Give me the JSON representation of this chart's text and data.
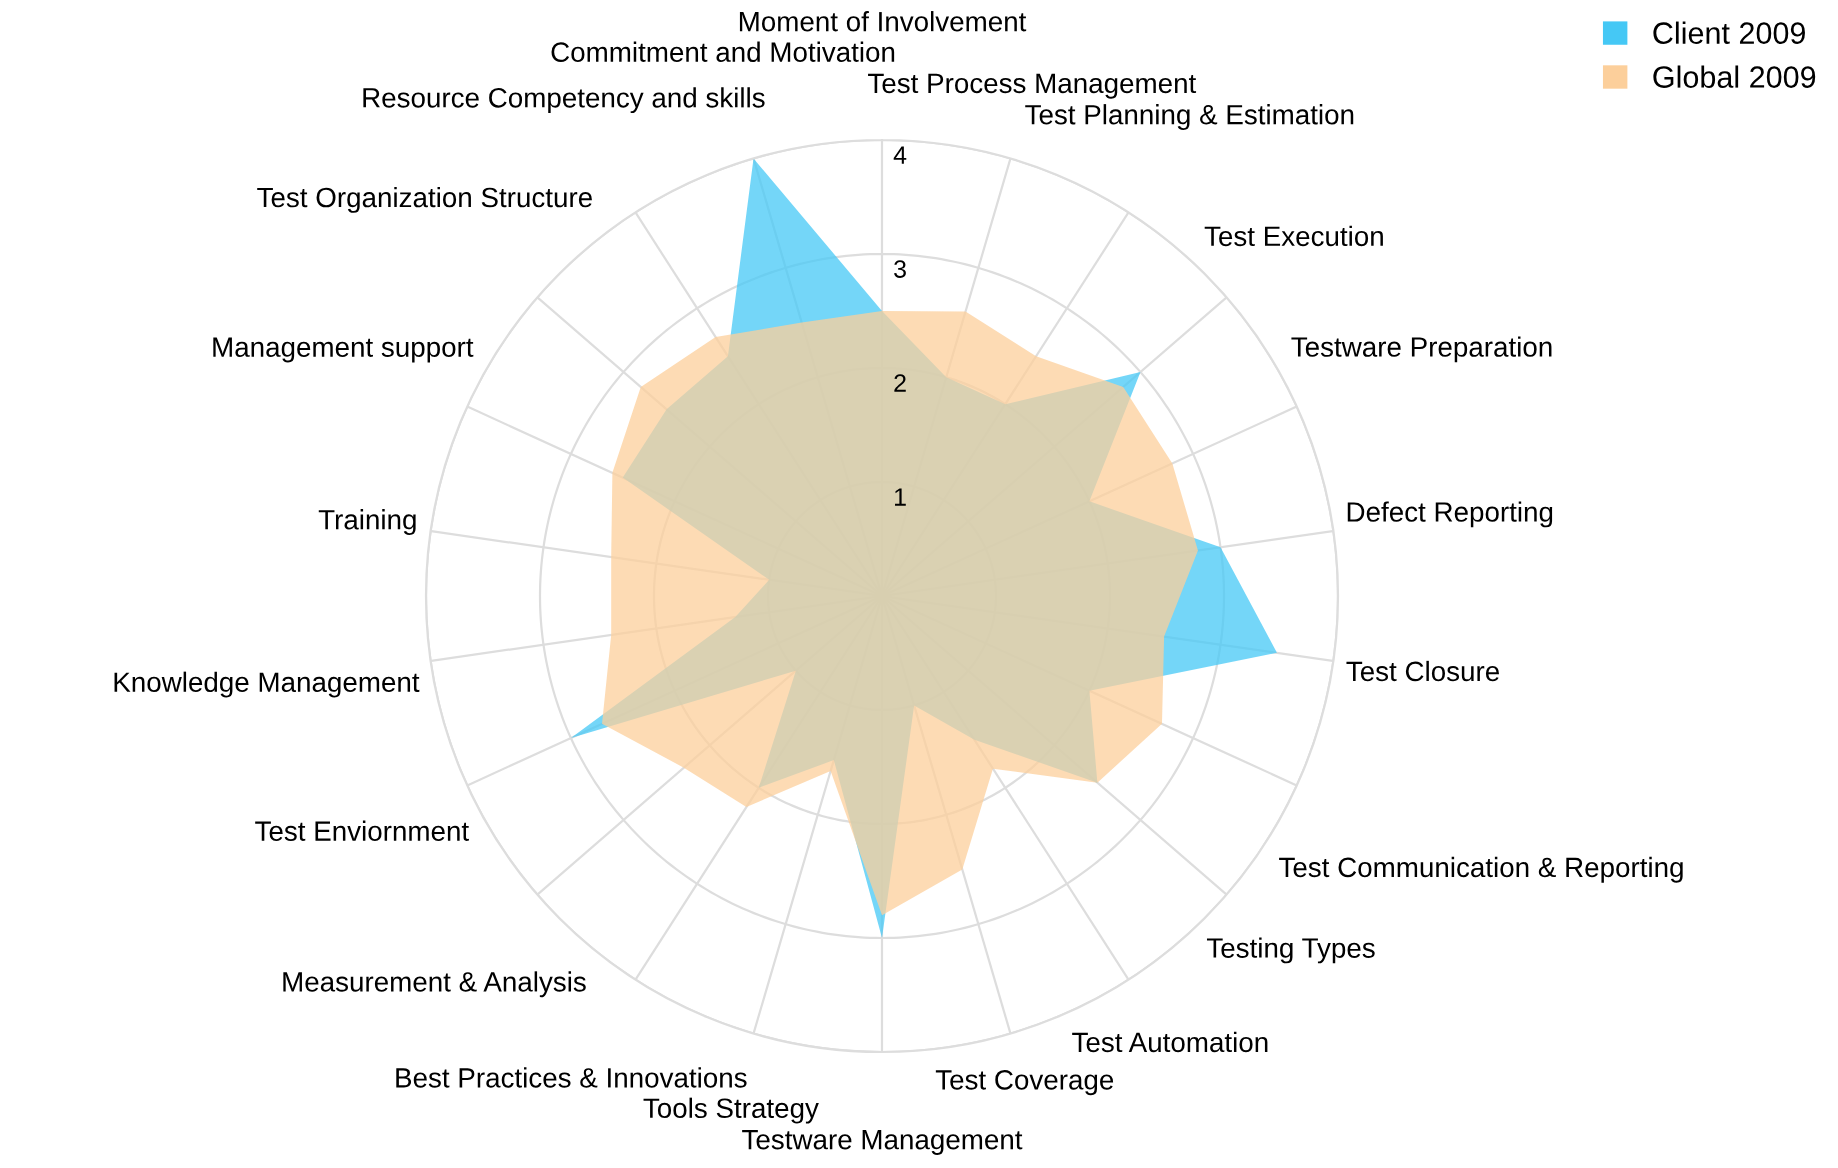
{
  "chart_data": {
    "type": "radar",
    "categories": [
      "Moment of Involvement",
      "Test Process Management",
      "Test Planning & Estimation",
      "Test Execution",
      "Testware Preparation",
      "Defect Reporting",
      "Test Closure",
      "Test Communication & Reporting",
      "Testing Types",
      "Test Automation",
      "Test Coverage",
      "Testware Management",
      "Tools Strategy",
      "Best Practices & Innovations",
      "Measurement & Analysis",
      "Test Enviornment",
      "Knowledge Management",
      "Training",
      "Management support",
      "Test Organization Structure",
      "Resource Competency and skills",
      "Commitment and Motivation"
    ],
    "series": [
      {
        "name": "Client 2009",
        "color": "#45c8f5",
        "values": [
          2.5,
          2.0,
          2.0,
          3.0,
          2.0,
          3.0,
          3.5,
          2.0,
          2.5,
          1.5,
          1.0,
          3.0,
          1.5,
          2.0,
          1.0,
          3.0,
          1.3,
          1.0,
          2.5,
          2.5,
          2.5,
          4.0
        ]
      },
      {
        "name": "Global 2009",
        "color": "#fccf9b",
        "values": [
          2.5,
          2.6,
          2.5,
          2.8,
          2.8,
          2.8,
          2.5,
          2.7,
          2.5,
          1.8,
          2.5,
          2.8,
          1.6,
          2.2,
          2.3,
          2.7,
          2.4,
          2.4,
          2.6,
          2.8,
          2.7,
          2.5
        ]
      }
    ],
    "ylim": [
      0,
      4
    ],
    "yticks": [
      1,
      2,
      3,
      4
    ],
    "grid": true,
    "legend": "top right"
  }
}
